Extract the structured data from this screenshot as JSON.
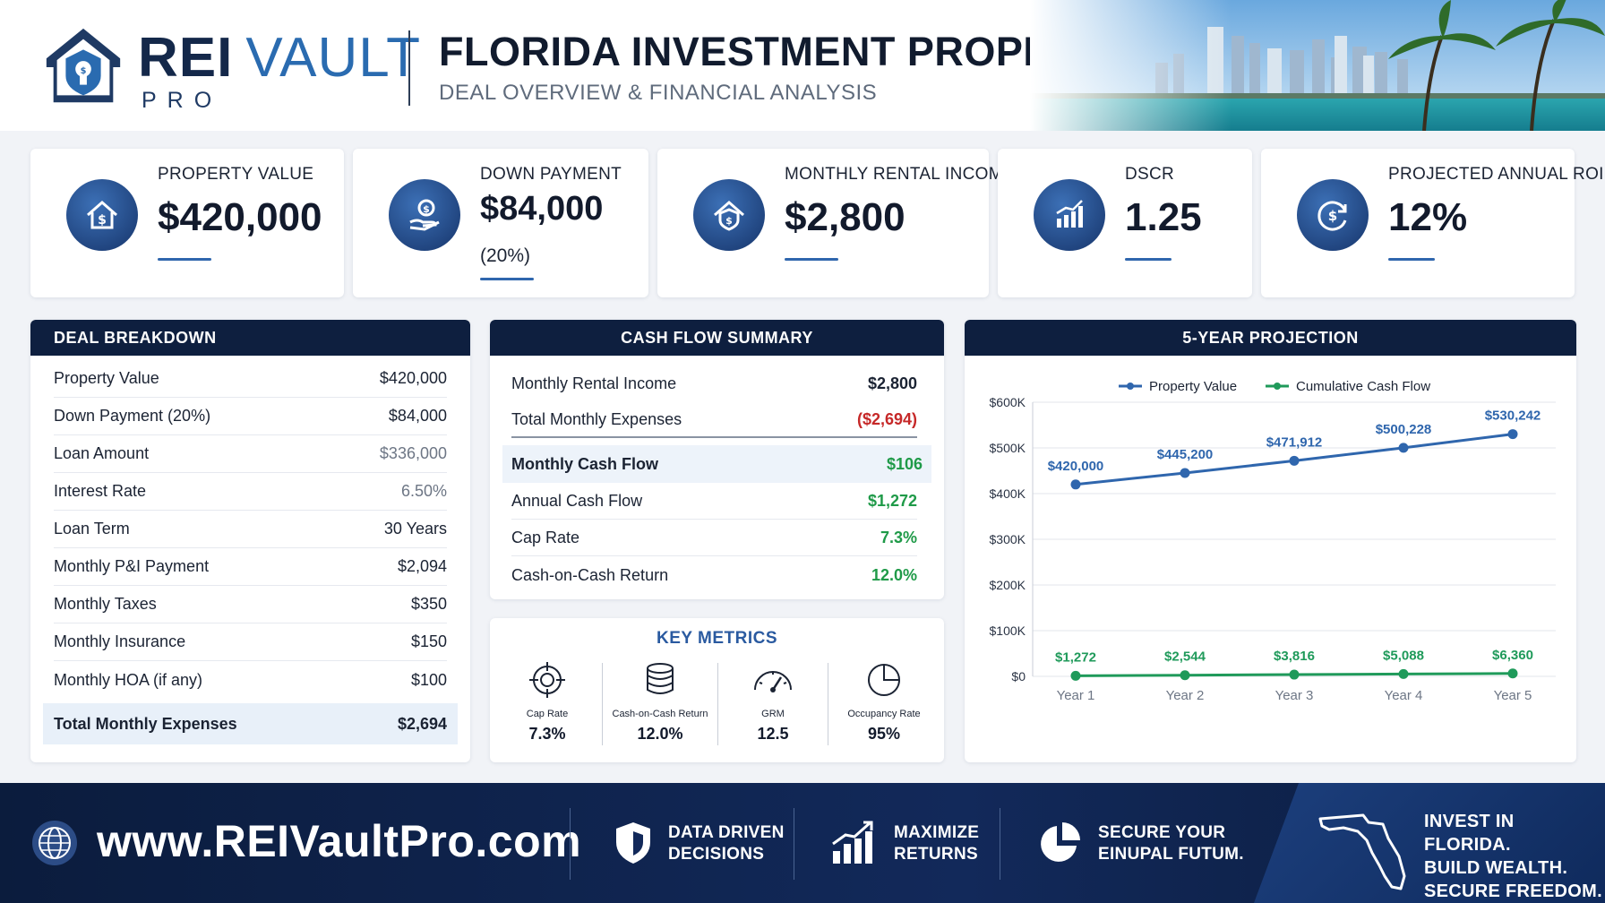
{
  "header": {
    "brand_name": "REI",
    "brand_accent": "VAULT",
    "brand_sub": "PRO",
    "title": "FLORIDA INVESTMENT PROPERTY",
    "subtitle": "DEAL OVERVIEW & FINANCIAL ANALYSIS"
  },
  "stats": [
    {
      "label": "PROPERTY VALUE",
      "value": "$420,000",
      "sub": "",
      "icon": "house-dollar-icon"
    },
    {
      "label": "DOWN PAYMENT",
      "value": "$84,000",
      "sub": "(20%)",
      "icon": "hand-coin-icon"
    },
    {
      "label": "MONTHLY RENTAL INCOME",
      "value": "$2,800",
      "sub": "",
      "icon": "house-shield-icon"
    },
    {
      "label": "DSCR",
      "value": "1.25",
      "sub": "",
      "icon": "bar-chart-icon"
    },
    {
      "label": "PROJECTED ANNUAL ROI",
      "value": "12%",
      "sub": "",
      "icon": "cycle-dollar-icon"
    }
  ],
  "deal": {
    "title": "DEAL BREAKDOWN",
    "rows": [
      {
        "label": "Property Value",
        "value": "$420,000"
      },
      {
        "label": "Down Payment (20%)",
        "value": "$84,000"
      },
      {
        "label": "Loan Amount",
        "value": "$336,000"
      },
      {
        "label": "Interest Rate",
        "value": "6.50%"
      },
      {
        "label": "Loan Term",
        "value": "30 Years"
      },
      {
        "label": "Monthly P&I Payment",
        "value": "$2,094"
      },
      {
        "label": "Monthly Taxes",
        "value": "$350"
      },
      {
        "label": "Monthly Insurance",
        "value": "$150"
      },
      {
        "label": "Monthly HOA (if any)",
        "value": "$100"
      }
    ],
    "total_label": "Total Monthly Expenses",
    "total_value": "$2,694"
  },
  "cashflow": {
    "title": "CASH FLOW SUMMARY",
    "rows": [
      {
        "label": "Monthly Rental Income",
        "value": "$2,800"
      },
      {
        "label": "Total Monthly Expenses",
        "value": "($2,694)"
      },
      {
        "label": "Monthly Cash Flow",
        "value": "$106"
      },
      {
        "label": "Annual Cash Flow",
        "value": "$1,272"
      },
      {
        "label": "Cap Rate",
        "value": "7.3%"
      },
      {
        "label": "Cash-on-Cash Return",
        "value": "12.0%"
      }
    ]
  },
  "key_metrics": {
    "title": "KEY METRICS",
    "items": [
      {
        "label": "Cap Rate",
        "value": "7.3%",
        "icon": "target-icon"
      },
      {
        "label": "Cash-on-Cash Return",
        "value": "12.0%",
        "icon": "coin-stack-icon"
      },
      {
        "label": "GRM",
        "value": "12.5",
        "icon": "gauge-icon"
      },
      {
        "label": "Occupancy Rate",
        "value": "95%",
        "icon": "pie-icon"
      }
    ]
  },
  "projection": {
    "title": "5-YEAR PROJECTION"
  },
  "chart_data": {
    "type": "line",
    "title": "5-YEAR PROJECTION",
    "categories": [
      "Year 1",
      "Year 2",
      "Year 3",
      "Year 4",
      "Year 5"
    ],
    "series": [
      {
        "name": "Property Value",
        "color": "#2f66ad",
        "values": [
          420000,
          445200,
          471912,
          500228,
          530242
        ],
        "labels": [
          "$420,000",
          "$445,200",
          "$471,912",
          "$500,228",
          "$530,242"
        ]
      },
      {
        "name": "Cumulative Cash Flow",
        "color": "#1f9a5a",
        "values": [
          1272,
          2544,
          3816,
          5088,
          6360
        ],
        "labels": [
          "$1,272",
          "$2,544",
          "$3,816",
          "$5,088",
          "$6,360"
        ]
      }
    ],
    "y_ticks": [
      0,
      100000,
      200000,
      300000,
      400000,
      500000,
      600000
    ],
    "y_tick_labels": [
      "$0",
      "$100K",
      "$200K",
      "$300K",
      "$400K",
      "$500K",
      "$600K"
    ],
    "ylim": [
      0,
      600000
    ],
    "legend": "top-center",
    "grid": "horizontal"
  },
  "footer": {
    "url": "www.REIVaultPro.com",
    "features": [
      {
        "line1": "DATA DRIVEN",
        "line2": "DECISIONS",
        "icon": "shield-icon"
      },
      {
        "line1": "MAXIMIZE",
        "line2": "RETURNS",
        "icon": "growth-chart-icon"
      },
      {
        "line1": "SECURE YOUR",
        "line2": "EINUPAL FUTUM.",
        "icon": "pie-chart-icon"
      }
    ],
    "slogan": [
      "INVEST IN FLORIDA.",
      "BUILD WEALTH.",
      "SECURE FREEDOM."
    ]
  },
  "colors": {
    "navy": "#0e1f3f",
    "accent_blue": "#2f66ad",
    "green": "#1f9a48",
    "red": "#c62828"
  }
}
